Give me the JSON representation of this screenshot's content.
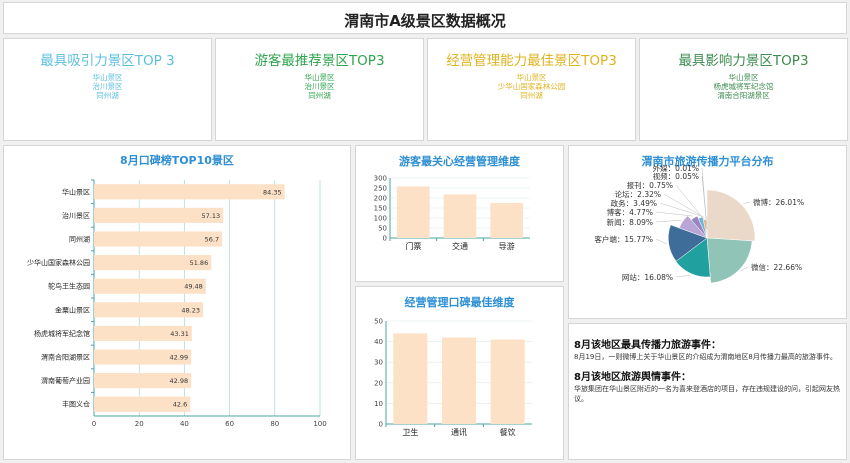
{
  "page": {
    "title": "渭南市A级景区数据概况"
  },
  "kpis": [
    {
      "title": "最具吸引力景区TOP 3",
      "items": [
        "华山景区",
        "治川景区",
        "同州湖"
      ]
    },
    {
      "title": "游客最推荐景区TOP3",
      "items": [
        "华山景区",
        "治川景区",
        "同州湖"
      ]
    },
    {
      "title": "经营管理能力最佳景区TOP3",
      "items": [
        "华山景区",
        "少华山国家森林公园",
        "同州湖"
      ]
    },
    {
      "title": "最具影响力景区TOP3",
      "items": [
        "华山景区",
        "杨虎城将军纪念馆",
        "渭南合阳湖景区"
      ]
    }
  ],
  "panels": {
    "top10_title": "8月口碑榜TOP10景区",
    "concern_title": "游客最关心经营管理维度",
    "best_title": "经营管理口碑最佳维度",
    "pie_title": "渭南市旅游传播力平台分布"
  },
  "colors": {
    "bar": "#fde1c6",
    "title": "#2d8fd4",
    "axis": "#4aa3a3"
  },
  "chart_data": [
    {
      "type": "bar",
      "orientation": "horizontal",
      "title": "8月口碑榜TOP10景区",
      "categories": [
        "华山景区",
        "治川景区",
        "同州湖",
        "少华山国家森林公园",
        "鸵鸟王生态园",
        "金粟山景区",
        "杨虎城将军纪念馆",
        "渭南合阳湖景区",
        "渭南葡萄产业园",
        "丰图义仓"
      ],
      "values": [
        84.35,
        57.13,
        56.7,
        51.86,
        49.48,
        48.23,
        43.31,
        42.99,
        42.98,
        42.6
      ],
      "xlim": [
        0,
        100
      ],
      "xticks": [
        0,
        20,
        40,
        60,
        80,
        100
      ]
    },
    {
      "type": "bar",
      "title": "游客最关心经营管理维度",
      "categories": [
        "门票",
        "交通",
        "导游"
      ],
      "values": [
        258,
        218,
        175
      ],
      "ylim": [
        0,
        300
      ],
      "yticks": [
        0,
        50,
        100,
        150,
        200,
        250,
        300
      ]
    },
    {
      "type": "bar",
      "title": "经营管理口碑最佳维度",
      "categories": [
        "卫生",
        "通讯",
        "餐饮"
      ],
      "values": [
        44,
        42,
        41
      ],
      "ylim": [
        0,
        50
      ],
      "yticks": [
        0,
        10,
        20,
        30,
        40,
        50
      ]
    },
    {
      "type": "pie",
      "style": "rose",
      "title": "渭南市旅游传播力平台分布",
      "slices": [
        {
          "name": "微博",
          "value": 26.01,
          "label": "微博：26.01%",
          "color": "#ead9c8"
        },
        {
          "name": "微信",
          "value": 22.66,
          "label": "微信：22.66%",
          "color": "#8fc4b7"
        },
        {
          "name": "网站",
          "value": 16.08,
          "label": "网站：16.08%",
          "color": "#21a0a0"
        },
        {
          "name": "客户端",
          "value": 15.77,
          "label": "客户端：15.77%",
          "color": "#3d6d98"
        },
        {
          "name": "新闻",
          "value": 8.09,
          "label": "新闻：8.09%",
          "color": "#b9a6d6"
        },
        {
          "name": "博客",
          "value": 4.77,
          "label": "博客：4.77%",
          "color": "#9b84c4"
        },
        {
          "name": "政务",
          "value": 3.49,
          "label": "政务：3.49%",
          "color": "#6fb7d3"
        },
        {
          "name": "论坛",
          "value": 2.32,
          "label": "论坛：2.32%",
          "color": "#f0b27a"
        },
        {
          "name": "报刊",
          "value": 0.75,
          "label": "报刊：0.75%",
          "color": "#d98880"
        },
        {
          "name": "视频",
          "value": 0.05,
          "label": "视频：0.05%",
          "color": "#f5cba7"
        },
        {
          "name": "外媒",
          "value": 0.01,
          "label": "外媒：0.01%",
          "color": "#aed6f1"
        }
      ]
    }
  ],
  "events": [
    {
      "title": "8月该地区最具传播力旅游事件：",
      "text": "8月19日，一则微博上关于华山景区的介绍成为渭南地区8月传播力最高的旅游事件。"
    },
    {
      "title": "8月该地区旅游舆情事件：",
      "text": "华旅集团在华山景区附近的一名为喜来登酒店的项目，存在违规建设的问，引起网友热议。"
    }
  ]
}
